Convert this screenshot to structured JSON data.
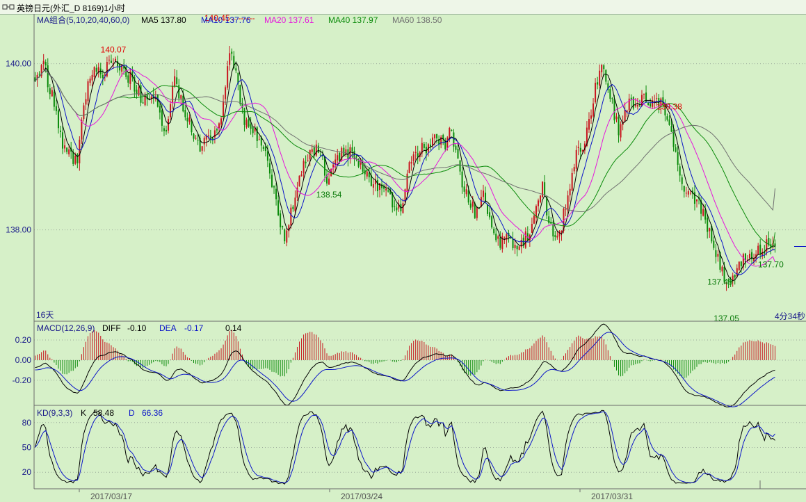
{
  "window": {
    "title": "英镑日元(外汇_D 8169)1小时"
  },
  "colors": {
    "background": "#d6f0c8",
    "up_candle": "#c8141e",
    "down_candle": "#0a8a0a",
    "ma5": "#000000",
    "ma10": "#0a14c8",
    "ma20": "#e614dc",
    "ma40": "#0a8a0a",
    "ma60": "#707070",
    "label_red": "#e00000",
    "label_green": "#0a7a0a",
    "axis_text": "#1a1a8a"
  },
  "main_panel": {
    "legend_prefix": "MA组合(5,10,20,40,60,0)",
    "ma_labels": [
      {
        "text": "MA5 137.80",
        "color": "#000000"
      },
      {
        "text": "MA10 137.76",
        "color": "#0a14c8"
      },
      {
        "text": "MA20 137.61",
        "color": "#e614dc"
      },
      {
        "text": "MA40 137.97",
        "color": "#0a8a0a"
      },
      {
        "text": "MA60 138.50",
        "color": "#707070"
      }
    ],
    "y_ticks": [
      "140.00",
      "138.00"
    ],
    "annotations": [
      {
        "text": "140.45←------",
        "value": 140.45,
        "color": "#e00000"
      },
      {
        "text": "138.54",
        "value": 138.54,
        "color": "#0a7a0a"
      },
      {
        "text": "137.70",
        "value": 137.7,
        "color": "#0a7a0a"
      },
      {
        "text": "139.38",
        "value": 139.38,
        "color": "#e00000"
      },
      {
        "text": "137.49",
        "value": 137.49,
        "color": "#0a7a0a"
      },
      {
        "text": "140.07",
        "value": 140.07,
        "color": "#e00000"
      },
      {
        "text": "137.05",
        "value": 137.05,
        "color": "#0a7a0a"
      }
    ],
    "period_label": "16天",
    "countdown": "4分34秒"
  },
  "macd_panel": {
    "legend_prefix": "MACD(12,26,9)",
    "diff_label": "DIFF",
    "diff_value": "-0.10",
    "dea_label": "DEA",
    "dea_value": "-0.17",
    "macd_value": "0.14",
    "y_ticks": [
      "0.20",
      "0.00",
      "-0.20"
    ]
  },
  "kd_panel": {
    "legend_prefix": "KD(9,3,3)",
    "k_label": "K",
    "k_value": "58.48",
    "d_label": "D",
    "d_value": "66.36",
    "y_ticks": [
      "80",
      "50",
      "20"
    ]
  },
  "x_axis": {
    "date_labels": [
      "2017/03/17",
      "2017/03/24",
      "2017/03/31"
    ]
  },
  "chart_data": [
    {
      "type": "candlestick",
      "title": "英镑日元(外汇_D 8169)1小时",
      "ylim": [
        136.9,
        140.6
      ],
      "close_keypoints": [
        [
          0,
          139.8
        ],
        [
          4,
          140.0
        ],
        [
          8,
          139.6
        ],
        [
          12,
          139.1
        ],
        [
          16,
          138.9
        ],
        [
          20,
          138.8
        ],
        [
          22,
          139.4
        ],
        [
          26,
          139.9
        ],
        [
          32,
          139.9
        ],
        [
          38,
          140.1
        ],
        [
          42,
          139.9
        ],
        [
          46,
          139.8
        ],
        [
          50,
          139.6
        ],
        [
          56,
          139.6
        ],
        [
          62,
          139.2
        ],
        [
          66,
          139.8
        ],
        [
          70,
          139.5
        ],
        [
          74,
          139.2
        ],
        [
          78,
          139.0
        ],
        [
          82,
          139.1
        ],
        [
          88,
          139.3
        ],
        [
          92,
          140.1
        ],
        [
          95,
          139.9
        ],
        [
          98,
          139.4
        ],
        [
          102,
          139.2
        ],
        [
          106,
          139.1
        ],
        [
          110,
          138.8
        ],
        [
          114,
          138.3
        ],
        [
          118,
          137.9
        ],
        [
          122,
          138.3
        ],
        [
          126,
          138.7
        ],
        [
          130,
          138.9
        ],
        [
          134,
          139.0
        ],
        [
          138,
          138.6
        ],
        [
          142,
          138.9
        ],
        [
          146,
          138.9
        ],
        [
          150,
          138.95
        ],
        [
          154,
          138.8
        ],
        [
          158,
          138.6
        ],
        [
          162,
          138.5
        ],
        [
          166,
          138.5
        ],
        [
          170,
          138.2
        ],
        [
          174,
          138.3
        ],
        [
          178,
          138.9
        ],
        [
          182,
          138.95
        ],
        [
          186,
          139.0
        ],
        [
          190,
          139.1
        ],
        [
          194,
          139.0
        ],
        [
          196,
          139.3
        ],
        [
          200,
          138.8
        ],
        [
          204,
          138.4
        ],
        [
          208,
          138.2
        ],
        [
          212,
          138.4
        ],
        [
          216,
          138.05
        ],
        [
          220,
          137.8
        ],
        [
          224,
          137.95
        ],
        [
          228,
          137.7
        ],
        [
          232,
          137.9
        ],
        [
          236,
          138.1
        ],
        [
          240,
          138.5
        ],
        [
          244,
          138.0
        ],
        [
          248,
          137.95
        ],
        [
          252,
          138.4
        ],
        [
          256,
          138.9
        ],
        [
          260,
          139.0
        ],
        [
          264,
          139.6
        ],
        [
          268,
          139.95
        ],
        [
          272,
          139.6
        ],
        [
          276,
          139.2
        ],
        [
          280,
          139.5
        ],
        [
          284,
          139.5
        ],
        [
          288,
          139.6
        ],
        [
          292,
          139.55
        ],
        [
          296,
          139.55
        ],
        [
          300,
          139.3
        ],
        [
          304,
          138.7
        ],
        [
          308,
          138.4
        ],
        [
          312,
          138.4
        ],
        [
          316,
          138.2
        ],
        [
          320,
          137.9
        ],
        [
          324,
          137.6
        ],
        [
          328,
          137.3
        ],
        [
          332,
          137.55
        ],
        [
          336,
          137.7
        ],
        [
          340,
          137.7
        ],
        [
          344,
          137.75
        ],
        [
          348,
          137.85
        ],
        [
          350,
          137.8
        ]
      ],
      "candle_count": 351
    },
    {
      "type": "line",
      "title": "MA组合(5,10,20,40,60,0)",
      "series": [
        {
          "name": "MA5",
          "period": 5,
          "last": 137.8
        },
        {
          "name": "MA10",
          "period": 10,
          "last": 137.76
        },
        {
          "name": "MA20",
          "period": 20,
          "last": 137.61
        },
        {
          "name": "MA40",
          "period": 40,
          "last": 137.97
        },
        {
          "name": "MA60",
          "period": 60,
          "last": 138.5
        }
      ]
    },
    {
      "type": "bar",
      "title": "MACD(12,26,9)",
      "ylim": [
        -0.45,
        0.38
      ],
      "series": [
        {
          "name": "DIFF",
          "last": -0.1
        },
        {
          "name": "DEA",
          "last": -0.17
        }
      ]
    },
    {
      "type": "line",
      "title": "KD(9,3,3)",
      "ylim": [
        0,
        100
      ],
      "series": [
        {
          "name": "K",
          "last": 58.48
        },
        {
          "name": "D",
          "last": 66.36
        }
      ]
    }
  ]
}
